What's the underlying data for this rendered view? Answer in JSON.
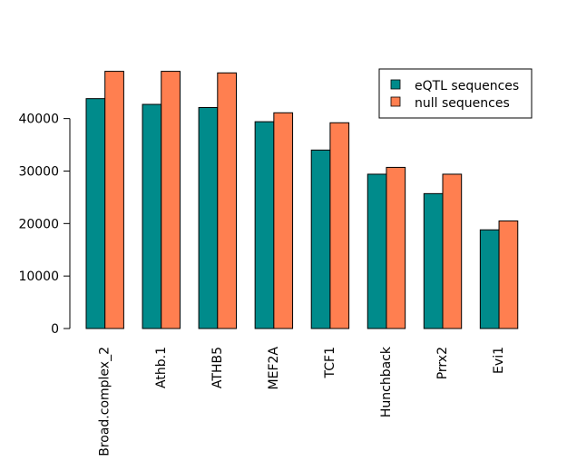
{
  "chart_data": {
    "type": "bar",
    "title": "",
    "xlabel": "",
    "ylabel": "",
    "categories": [
      "Broad.complex_2",
      "Athb.1",
      "ATHB5",
      "MEF2A",
      "TCF1",
      "Hunchback",
      "Prrx2",
      "Evi1"
    ],
    "series": [
      {
        "name": "eQTL sequences",
        "color": "#008b8b",
        "values": [
          43800,
          42700,
          42100,
          39400,
          34000,
          29400,
          25700,
          18800
        ]
      },
      {
        "name": "null sequences",
        "color": "#ff7f50",
        "values": [
          49000,
          49000,
          48700,
          41100,
          39200,
          30700,
          29400,
          20500
        ]
      }
    ],
    "yticks": [
      0,
      10000,
      20000,
      30000,
      40000
    ],
    "ylim": [
      0,
      49000
    ],
    "legend_position": "top-right",
    "grid": false
  }
}
